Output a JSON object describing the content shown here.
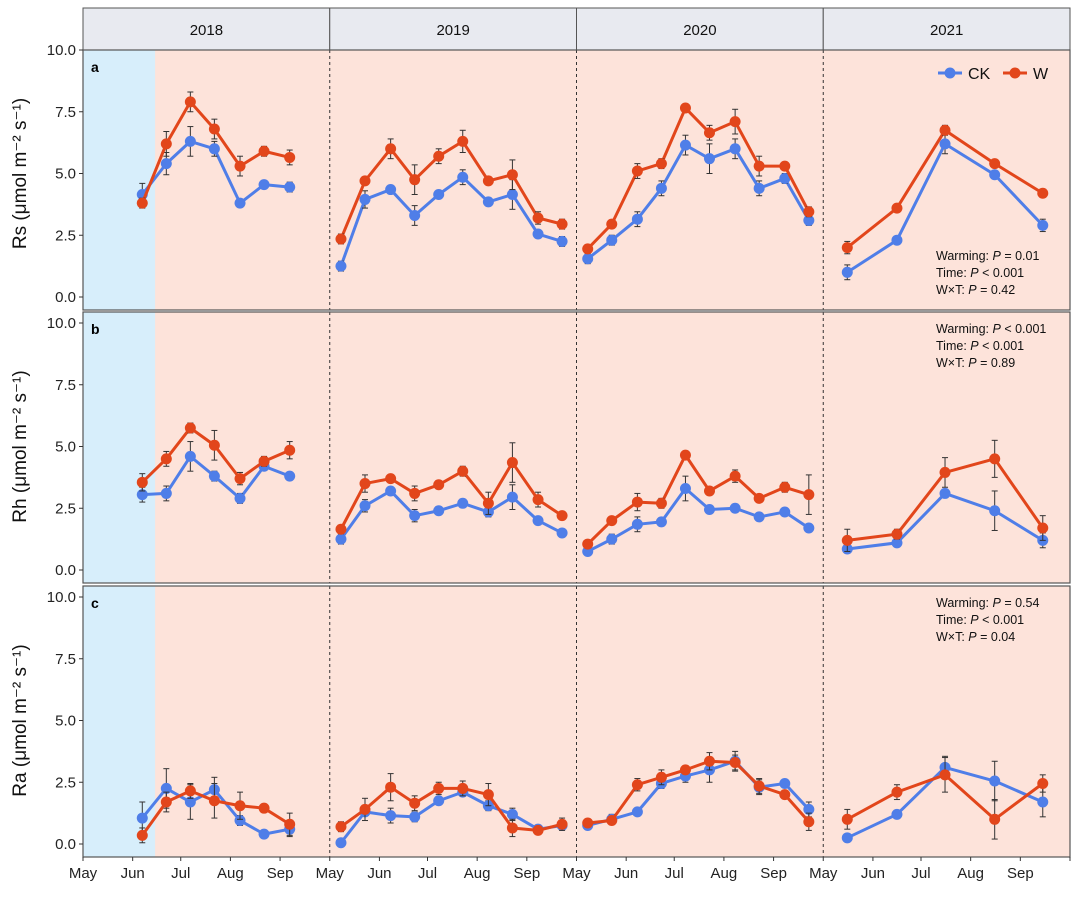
{
  "chart_data": {
    "type": "line",
    "facets": [
      "2018",
      "2019",
      "2020",
      "2021"
    ],
    "x_tick_labels": [
      "May",
      "Jun",
      "Jul",
      "Aug",
      "Sep"
    ],
    "y_tick_labels": [
      "0.0",
      "2.5",
      "5.0",
      "7.5",
      "10.0"
    ],
    "ylim": [
      0,
      10
    ],
    "grid": false,
    "legend": {
      "position": "top-right",
      "entries": [
        "CK",
        "W"
      ]
    },
    "colors": {
      "CK": "#4f7ee8",
      "W": "#e2461b",
      "background_warming": "#fde3da",
      "background_pre_treatment": "#d7eefb",
      "strip": "#e8eaf0"
    },
    "pre_treatment_period": {
      "year": "2018",
      "from": "05-01",
      "to": "06-15"
    },
    "x": {
      "2018": [
        "06-07",
        "06-22",
        "07-07",
        "07-22",
        "08-07",
        "08-22",
        "09-07"
      ],
      "2019": [
        "05-08",
        "05-23",
        "06-08",
        "06-23",
        "07-08",
        "07-23",
        "08-08",
        "08-23",
        "09-08",
        "09-23"
      ],
      "2020": [
        "05-08",
        "05-23",
        "06-08",
        "06-23",
        "07-08",
        "07-23",
        "08-08",
        "08-23",
        "09-08",
        "09-23"
      ],
      "2021": [
        "05-16",
        "06-16",
        "07-16",
        "08-16",
        "09-15"
      ]
    },
    "panels": [
      {
        "tag": "a",
        "ylabel": "Rs (μmol m⁻² s⁻¹)",
        "annotation": [
          {
            "label": "Warming: ",
            "p": "P",
            "rest": " = 0.01"
          },
          {
            "label": "Time: ",
            "p": "P",
            "rest": " < 0.001"
          },
          {
            "label": "W×T: ",
            "p": "P",
            "rest": " = 0.42"
          }
        ],
        "annotation_position": "bottom-right",
        "series": [
          {
            "name": "CK",
            "values": {
              "2018": [
                4.15,
                5.4,
                6.3,
                6.0,
                3.8,
                4.55,
                4.45
              ],
              "2019": [
                1.25,
                3.95,
                4.35,
                3.3,
                4.15,
                4.85,
                3.85,
                4.15,
                2.55,
                2.25
              ],
              "2020": [
                1.55,
                2.3,
                3.15,
                4.4,
                6.15,
                5.6,
                6.0,
                4.4,
                4.8,
                3.1
              ],
              "2021": [
                1.0,
                2.3,
                6.2,
                4.95,
                2.9
              ]
            },
            "se": {
              "2018": [
                0.45,
                0.45,
                0.6,
                0.3,
                0.15,
                0.1,
                0.2
              ],
              "2019": [
                0.2,
                0.35,
                0.15,
                0.4,
                0.1,
                0.3,
                0.1,
                0.6,
                0.15,
                0.2
              ],
              "2020": [
                0.2,
                0.2,
                0.3,
                0.3,
                0.4,
                0.6,
                0.4,
                0.3,
                0.2,
                0.2
              ],
              "2021": [
                0.3,
                0.05,
                0.4,
                0.1,
                0.25
              ]
            }
          },
          {
            "name": "W",
            "values": {
              "2018": [
                3.8,
                6.2,
                7.9,
                6.8,
                5.3,
                5.9,
                5.65
              ],
              "2019": [
                2.35,
                4.7,
                6.0,
                4.75,
                5.7,
                6.3,
                4.7,
                4.95,
                3.2,
                2.95
              ],
              "2020": [
                1.95,
                2.95,
                5.1,
                5.4,
                7.65,
                6.65,
                7.1,
                5.3,
                5.3,
                3.45
              ],
              "2021": [
                2.0,
                3.6,
                6.75,
                5.4,
                4.2
              ]
            },
            "se": {
              "2018": [
                0.2,
                0.5,
                0.4,
                0.4,
                0.4,
                0.2,
                0.3
              ],
              "2019": [
                0.2,
                0.15,
                0.4,
                0.6,
                0.3,
                0.45,
                0.1,
                0.6,
                0.25,
                0.2
              ],
              "2020": [
                0.1,
                0.1,
                0.3,
                0.2,
                0.1,
                0.3,
                0.5,
                0.4,
                0.1,
                0.2
              ],
              "2021": [
                0.25,
                0.05,
                0.2,
                0.05,
                0.1
              ]
            }
          }
        ]
      },
      {
        "tag": "b",
        "ylabel": "Rh (μmol m⁻² s⁻¹)",
        "annotation": [
          {
            "label": "Warming: ",
            "p": "P",
            "rest": " < 0.001"
          },
          {
            "label": "Time: ",
            "p": "P",
            "rest": " < 0.001"
          },
          {
            "label": "W×T: ",
            "p": "P",
            "rest": " = 0.89"
          }
        ],
        "annotation_position": "top-right",
        "series": [
          {
            "name": "CK",
            "values": {
              "2018": [
                3.05,
                3.1,
                4.6,
                3.8,
                2.9,
                4.2,
                3.8
              ],
              "2019": [
                1.25,
                2.6,
                3.2,
                2.2,
                2.4,
                2.7,
                2.35,
                2.95,
                2.0,
                1.5
              ],
              "2020": [
                0.75,
                1.25,
                1.85,
                1.95,
                3.3,
                2.45,
                2.5,
                2.15,
                2.35,
                1.7
              ],
              "2021": [
                0.85,
                1.1,
                3.1,
                2.4,
                1.2
              ]
            },
            "se": {
              "2018": [
                0.3,
                0.3,
                0.6,
                0.2,
                0.2,
                0.05,
                0.05
              ],
              "2019": [
                0.2,
                0.25,
                0.1,
                0.25,
                0.05,
                0.05,
                0.2,
                0.5,
                0.1,
                0.05
              ],
              "2020": [
                0.15,
                0.2,
                0.3,
                0.1,
                0.5,
                0.05,
                0.05,
                0.05,
                0.05,
                0.05
              ],
              "2021": [
                0.15,
                0.1,
                0.05,
                0.8,
                0.3
              ]
            }
          },
          {
            "name": "W",
            "values": {
              "2018": [
                3.55,
                4.5,
                5.75,
                5.05,
                3.7,
                4.4,
                4.85
              ],
              "2019": [
                1.65,
                3.5,
                3.7,
                3.1,
                3.45,
                4.0,
                2.7,
                4.35,
                2.85,
                2.2
              ],
              "2020": [
                1.05,
                2.0,
                2.75,
                2.7,
                4.65,
                3.2,
                3.8,
                2.9,
                3.35,
                3.05
              ],
              "2021": [
                1.2,
                1.45,
                3.95,
                4.5,
                1.7
              ]
            },
            "se": {
              "2018": [
                0.35,
                0.3,
                0.2,
                0.6,
                0.25,
                0.2,
                0.35
              ],
              "2019": [
                0.1,
                0.35,
                0.15,
                0.3,
                0.15,
                0.2,
                0.45,
                0.8,
                0.3,
                0.05
              ],
              "2020": [
                0.1,
                0.05,
                0.35,
                0.2,
                0.05,
                0.05,
                0.25,
                0.1,
                0.2,
                0.8
              ],
              "2021": [
                0.45,
                0.2,
                0.6,
                0.75,
                0.5
              ]
            }
          }
        ]
      },
      {
        "tag": "c",
        "ylabel": "Ra (μmol m⁻² s⁻¹)",
        "annotation": [
          {
            "label": "Warming: ",
            "p": "P",
            "rest": " = 0.54"
          },
          {
            "label": "Time: ",
            "p": "P",
            "rest": " < 0.001"
          },
          {
            "label": "W×T: ",
            "p": "P",
            "rest": " = 0.04"
          }
        ],
        "annotation_position": "top-right",
        "series": [
          {
            "name": "CK",
            "values": {
              "2018": [
                1.05,
                2.25,
                1.7,
                2.2,
                0.95,
                0.4,
                0.6
              ],
              "2019": [
                0.05,
                1.3,
                1.15,
                1.1,
                1.75,
                2.1,
                1.55,
                1.2,
                0.6,
                0.75
              ],
              "2020": [
                0.75,
                1.0,
                1.3,
                2.45,
                2.75,
                3.0,
                3.35,
                2.3,
                2.45,
                1.4
              ],
              "2021": [
                0.25,
                1.2,
                3.1,
                2.55,
                1.7
              ]
            },
            "se": {
              "2018": [
                0.65,
                0.8,
                0.7,
                0.5,
                0.2,
                0.05,
                0.3
              ],
              "2019": [
                0.05,
                0.05,
                0.3,
                0.2,
                0.1,
                0.15,
                0.2,
                0.25,
                0.05,
                0.1
              ],
              "2020": [
                0.1,
                0.2,
                0.05,
                0.2,
                0.25,
                0.5,
                0.4,
                0.3,
                0.05,
                0.3
              ],
              "2021": [
                0.05,
                0.1,
                0.45,
                0.8,
                0.6
              ]
            }
          },
          {
            "name": "W",
            "values": {
              "2018": [
                0.35,
                1.7,
                2.15,
                1.75,
                1.55,
                1.45,
                0.8
              ],
              "2019": [
                0.7,
                1.4,
                2.3,
                1.65,
                2.25,
                2.25,
                2.0,
                0.65,
                0.55,
                0.8
              ],
              "2020": [
                0.85,
                0.95,
                2.4,
                2.7,
                3.0,
                3.35,
                3.3,
                2.35,
                2.0,
                0.9
              ],
              "2021": [
                1.0,
                2.1,
                2.8,
                1.0,
                2.45
              ]
            },
            "se": {
              "2018": [
                0.3,
                0.4,
                0.3,
                0.7,
                0.55,
                0.05,
                0.45
              ],
              "2019": [
                0.2,
                0.45,
                0.55,
                0.3,
                0.25,
                0.3,
                0.45,
                0.35,
                0.1,
                0.25
              ],
              "2020": [
                0.1,
                0.05,
                0.25,
                0.3,
                0.05,
                0.35,
                0.3,
                0.3,
                0.05,
                0.35
              ],
              "2021": [
                0.4,
                0.3,
                0.7,
                0.8,
                0.35
              ]
            }
          }
        ]
      }
    ]
  }
}
